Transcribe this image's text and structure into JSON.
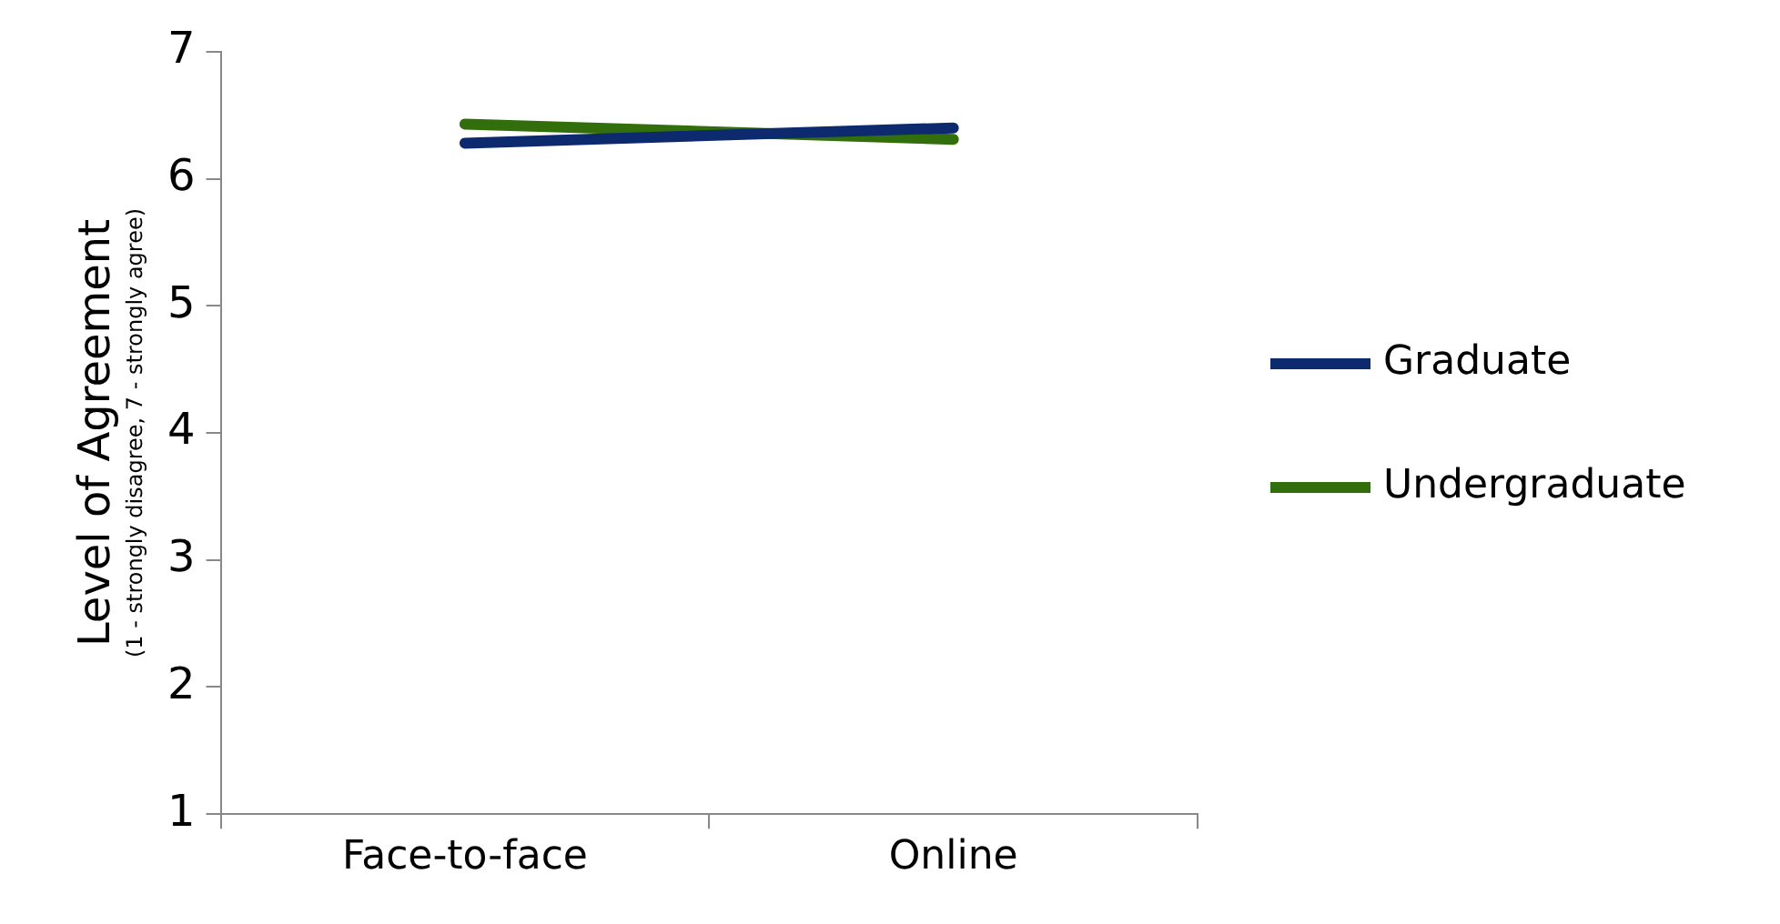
{
  "chart_data": {
    "type": "line",
    "ylabel": "Level of Agreement\n(1 - strongly disagree, 7 - strongly agree)",
    "categories": [
      "Face-to-face",
      "Online"
    ],
    "series": [
      {
        "name": "Graduate",
        "color": "#0d2a6e",
        "values": [
          6.28,
          6.4
        ]
      },
      {
        "name": "Undergraduate",
        "color": "#336e0d",
        "values": [
          6.43,
          6.31
        ]
      }
    ],
    "ylim": [
      1,
      7
    ],
    "yticks": [
      1,
      2,
      3,
      4,
      5,
      6,
      7
    ],
    "grid": false,
    "legend": "right",
    "marker": "none",
    "line_style": "solid"
  }
}
